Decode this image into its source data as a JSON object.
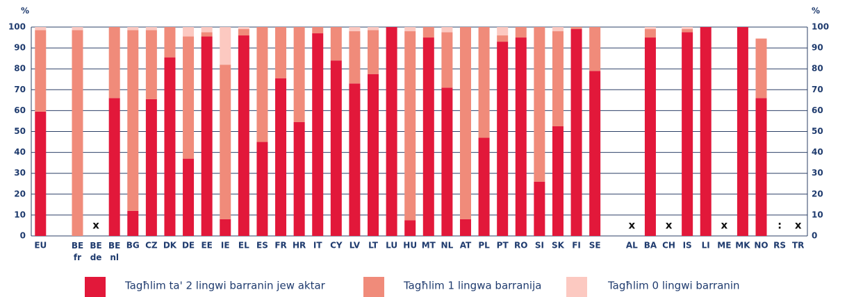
{
  "chart_data": {
    "type": "stacked_bar",
    "y_label": "%",
    "categories": [
      "EU",
      null,
      "BE fr",
      "BE de",
      "BE nl",
      "BG",
      "CZ",
      "DK",
      "DE",
      "EE",
      "IE",
      "EL",
      "ES",
      "FR",
      "HR",
      "IT",
      "CY",
      "LV",
      "LT",
      "LU",
      "HU",
      "MT",
      "NL",
      "AT",
      "PL",
      "PT",
      "RO",
      "SI",
      "SK",
      "FI",
      "SE",
      null,
      "AL",
      "BA",
      "CH",
      "IS",
      "LI",
      "ME",
      "MK",
      "NO",
      "RS",
      "TR"
    ],
    "series": [
      {
        "name": "Tagħlim ta' 2 lingwi barranin jew aktar",
        "color": "#e2183a",
        "values": [
          59.5,
          null,
          0,
          null,
          66,
          12,
          65.5,
          85.5,
          37,
          95.5,
          8,
          96,
          45,
          75.5,
          54.5,
          97,
          84,
          73,
          77.5,
          100,
          7.5,
          95,
          71,
          8,
          47,
          93,
          95,
          26,
          52.5,
          99,
          79,
          null,
          null,
          95,
          null,
          97.5,
          100,
          null,
          100,
          66,
          null,
          null
        ]
      },
      {
        "name": "Tagħlim 1 lingwa barranija",
        "color": "#f08b7a",
        "values": [
          39,
          null,
          98.5,
          null,
          34,
          86.5,
          33,
          14.5,
          58.5,
          2,
          74,
          3,
          55,
          24.5,
          45.5,
          3,
          16,
          25,
          21,
          0,
          90.5,
          5,
          26.5,
          92,
          53,
          3,
          5,
          74,
          45.5,
          1,
          21,
          null,
          null,
          4,
          null,
          1.5,
          0,
          null,
          0,
          28.5,
          null,
          null
        ]
      },
      {
        "name": "Tagħlim 0 lingwi barranin",
        "color": "#fcc9c1",
        "values": [
          1.5,
          null,
          1.5,
          null,
          0,
          1.5,
          1.5,
          0,
          4.5,
          2.5,
          18,
          1,
          0,
          0,
          0,
          0,
          0,
          2,
          1.5,
          0,
          2,
          0,
          2.5,
          0,
          0,
          4,
          0,
          0,
          2,
          0,
          0,
          null,
          null,
          1,
          null,
          1,
          0,
          null,
          0,
          0,
          null,
          null
        ]
      }
    ],
    "markers": [
      null,
      null,
      null,
      "x",
      null,
      null,
      null,
      null,
      null,
      null,
      null,
      null,
      null,
      null,
      null,
      null,
      null,
      null,
      null,
      null,
      null,
      null,
      null,
      null,
      null,
      null,
      null,
      null,
      null,
      null,
      null,
      null,
      "x",
      null,
      "x",
      null,
      null,
      "x",
      null,
      null,
      ":",
      "x"
    ],
    "ylim": [
      0,
      100
    ],
    "yticks": [
      0,
      10,
      20,
      30,
      40,
      50,
      60,
      70,
      80,
      90,
      100
    ],
    "grid": true
  }
}
